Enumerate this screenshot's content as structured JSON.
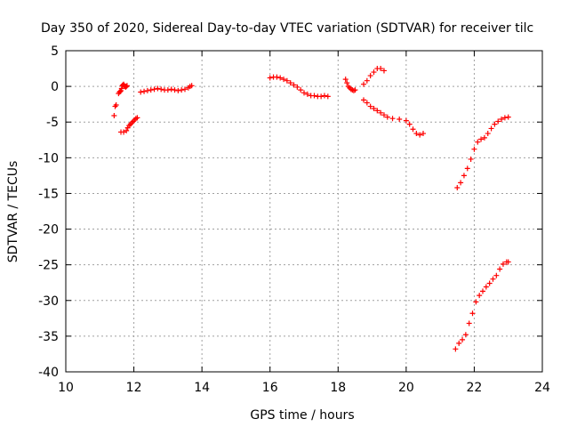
{
  "chart_data": {
    "type": "scatter",
    "title": "Day 350 of 2020, Sidereal Day-to-day VTEC variation (SDTVAR) for receiver tilc",
    "xlabel": "GPS time / hours",
    "ylabel": "SDTVAR / TECUs",
    "xlim": [
      10,
      24
    ],
    "ylim": [
      -40,
      5
    ],
    "xticks": [
      10,
      12,
      14,
      16,
      18,
      20,
      22,
      24
    ],
    "yticks": [
      5,
      0,
      -5,
      -10,
      -15,
      -20,
      -25,
      -30,
      -35,
      -40
    ],
    "grid": true,
    "marker": "plus",
    "color": "#ff0000",
    "series": [
      {
        "x": [
          11.42,
          11.45,
          11.48,
          11.55,
          11.58,
          11.6,
          11.62,
          11.64,
          11.66,
          11.68,
          11.7,
          11.72,
          11.74,
          11.76,
          11.78,
          11.8,
          11.62,
          11.7,
          11.78,
          11.82,
          11.86,
          11.9,
          11.94,
          11.98,
          12.02,
          12.06,
          12.1,
          12.2,
          12.3,
          12.4,
          12.5,
          12.6,
          12.7,
          12.8,
          12.9,
          13.0,
          13.1,
          13.2,
          13.3,
          13.4,
          13.5,
          13.6,
          13.65,
          13.7,
          16.0,
          16.1,
          16.2,
          16.3,
          16.4,
          16.5,
          16.6,
          16.7,
          16.8,
          16.9,
          17.0,
          17.1,
          17.2,
          17.3,
          17.4,
          17.5,
          17.6,
          17.7,
          18.22,
          18.26,
          18.3,
          18.34,
          18.38,
          18.42,
          18.46,
          18.5,
          18.75,
          18.85,
          18.95,
          19.05,
          19.15,
          19.25,
          19.35,
          18.75,
          18.85,
          18.95,
          19.05,
          19.15,
          19.25,
          19.35,
          19.45,
          19.6,
          19.8,
          20.0,
          20.1,
          20.2,
          20.3,
          20.4,
          20.5,
          21.5,
          21.6,
          21.7,
          21.8,
          21.9,
          22.0,
          22.1,
          22.2,
          22.3,
          22.4,
          22.5,
          22.6,
          22.7,
          22.8,
          22.9,
          23.0,
          21.45,
          21.55,
          21.65,
          21.75,
          21.85,
          21.95,
          22.05,
          22.15,
          22.25,
          22.35,
          22.45,
          22.55,
          22.65,
          22.75,
          22.85,
          22.95,
          23.0
        ],
        "y": [
          -4.1,
          -2.8,
          -2.6,
          -1.0,
          -0.8,
          -0.7,
          -0.6,
          -0.3,
          0.1,
          0.2,
          0.3,
          0.1,
          0.0,
          -0.1,
          0.0,
          0.1,
          -6.4,
          -6.4,
          -6.2,
          -5.8,
          -5.5,
          -5.3,
          -5.1,
          -4.9,
          -4.7,
          -4.5,
          -4.4,
          -0.8,
          -0.7,
          -0.6,
          -0.5,
          -0.4,
          -0.3,
          -0.4,
          -0.5,
          -0.5,
          -0.4,
          -0.5,
          -0.6,
          -0.5,
          -0.4,
          -0.2,
          0.0,
          0.1,
          1.2,
          1.3,
          1.3,
          1.2,
          1.0,
          0.8,
          0.5,
          0.2,
          -0.1,
          -0.5,
          -0.9,
          -1.1,
          -1.3,
          -1.3,
          -1.4,
          -1.4,
          -1.3,
          -1.4,
          1.0,
          0.5,
          0.0,
          -0.2,
          -0.4,
          -0.5,
          -0.6,
          -0.5,
          0.3,
          0.8,
          1.5,
          2.0,
          2.5,
          2.5,
          2.2,
          -1.9,
          -2.3,
          -2.8,
          -3.1,
          -3.4,
          -3.7,
          -4.0,
          -4.3,
          -4.5,
          -4.6,
          -4.8,
          -5.3,
          -6.0,
          -6.6,
          -6.8,
          -6.6,
          -14.2,
          -13.5,
          -12.5,
          -11.5,
          -10.2,
          -8.8,
          -7.8,
          -7.4,
          -7.2,
          -6.6,
          -5.9,
          -5.3,
          -4.9,
          -4.6,
          -4.4,
          -4.3,
          -36.8,
          -36.0,
          -35.5,
          -34.8,
          -33.2,
          -31.8,
          -30.2,
          -29.3,
          -28.7,
          -28.1,
          -27.6,
          -27.0,
          -26.5,
          -25.6,
          -24.9,
          -24.6,
          -24.6
        ]
      }
    ]
  }
}
